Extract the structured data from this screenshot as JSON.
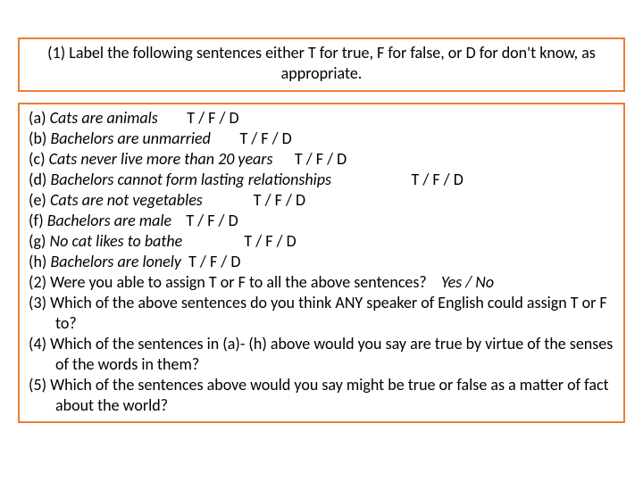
{
  "colors": {
    "border": "#ed7d31",
    "text": "#000000",
    "background": "#ffffff"
  },
  "typography": {
    "fontFamily": "Calibri, Arial, sans-serif",
    "fontSize": 18,
    "lineHeight": 1.28
  },
  "instruction": "(1) Label the following sentences either T for true, F for false, or D for don't know, as appropriate.",
  "choiceString": "T / F / D",
  "items": [
    {
      "label": "(a) ",
      "sentence": "Cats are animals",
      "gap": "        "
    },
    {
      "label": "(b) ",
      "sentence": "Bachelors are unmarried",
      "gap": "        "
    },
    {
      "label": "(c) ",
      "sentence": "Cats never live more than 20 years",
      "gap": "      "
    },
    {
      "label": "(d) ",
      "sentence": "Bachelors cannot form lasting relationships",
      "gap": "                      "
    },
    {
      "label": "(e) ",
      "sentence": "Cats are not vegetables",
      "gap": "              "
    },
    {
      "label": "(f) ",
      "sentence": "Bachelors are male",
      "gap": "    "
    },
    {
      "label": "(g) ",
      "sentence": "No cat likes to bathe",
      "gap": "                 "
    },
    {
      "label": "(h) ",
      "sentence": "Bachelors are lonely",
      "gap": "  "
    }
  ],
  "questions": [
    {
      "text": "(2) Were you able to assign T or F to all the above sentences?",
      "answer": "    Yes / No"
    },
    {
      "text": "(3) Which of the above sentences do you think ANY speaker of English could assign T or F to?",
      "answer": ""
    },
    {
      "text": "(4) Which of the sentences in (a)- (h) above would you say are true by virtue of the senses of the words in them?",
      "answer": ""
    },
    {
      "text": "(5) Which of the sentences above would you say might be true or false as a matter of fact about the world?",
      "answer": ""
    }
  ]
}
